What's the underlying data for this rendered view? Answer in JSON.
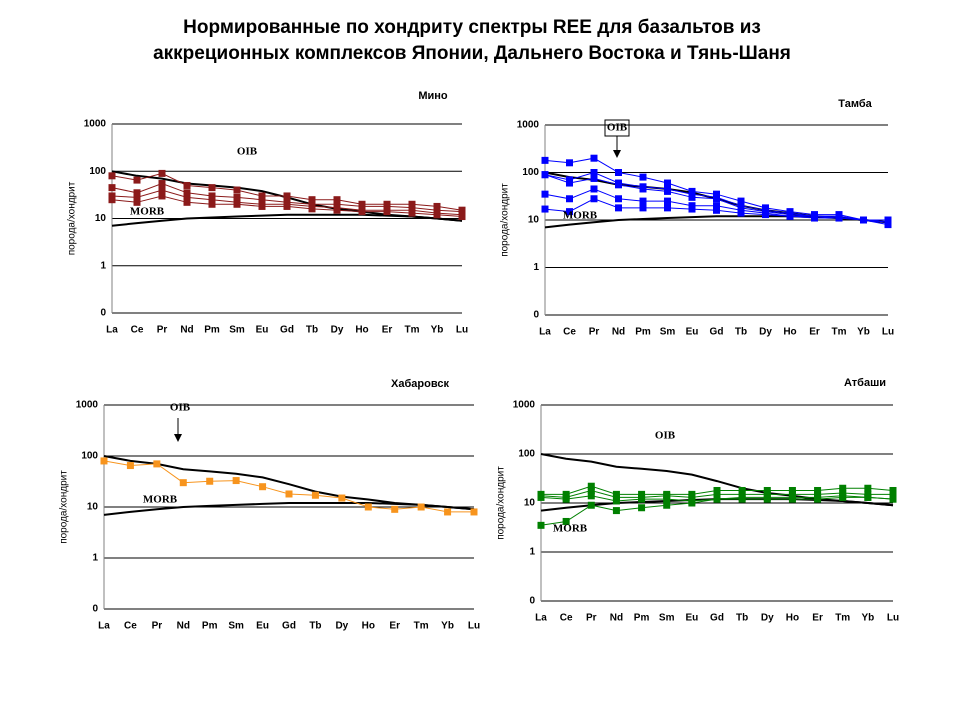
{
  "title": [
    "Нормированные по хондриту спектры REE для базальтов из",
    "аккреционных комплексов Японии, Дальнего Востока и Тянь-Шаня"
  ],
  "chart_data": [
    {
      "type": "line",
      "subtitle": "Мино",
      "y_label": "порода/хондрит",
      "log_scale": true,
      "grid": true,
      "categories": [
        "La",
        "Ce",
        "Pr",
        "Nd",
        "Pm",
        "Sm",
        "Eu",
        "Gd",
        "Tb",
        "Dy",
        "Ho",
        "Er",
        "Tm",
        "Yb",
        "Lu"
      ],
      "ylim": [
        0.1,
        1000
      ],
      "yticks": [
        {
          "value": 0.1,
          "label": "0"
        },
        1,
        10,
        100,
        1000
      ],
      "annotations": [
        "OIB",
        "MORB"
      ],
      "series": [
        {
          "color": "#000000",
          "markers": false,
          "values": [
            100,
            80,
            70,
            55,
            50,
            45,
            38,
            28,
            20,
            16,
            14,
            12,
            11,
            10,
            9
          ]
        },
        {
          "color": "#000000",
          "markers": false,
          "values": [
            7,
            8,
            9,
            10,
            10.5,
            11,
            11.5,
            12,
            12,
            12,
            12,
            11.5,
            11,
            10,
            9
          ]
        },
        {
          "color": "#8b1a1a",
          "markers": true,
          "values": [
            80,
            65,
            90,
            50,
            45,
            40,
            30,
            30,
            25,
            25,
            20,
            20,
            20,
            18,
            15
          ]
        },
        {
          "color": "#8b1a1a",
          "markers": true,
          "values": [
            45,
            35,
            55,
            35,
            30,
            28,
            25,
            22,
            20,
            20,
            18,
            18,
            17,
            15,
            14
          ]
        },
        {
          "color": "#8b1a1a",
          "markers": true,
          "values": [
            30,
            28,
            40,
            28,
            25,
            22,
            20,
            20,
            18,
            17,
            15,
            15,
            15,
            13,
            12
          ]
        },
        {
          "color": "#8b1a1a",
          "markers": true,
          "values": [
            25,
            22,
            30,
            22,
            20,
            20,
            18,
            18,
            16,
            15,
            14,
            14,
            13,
            12,
            11
          ]
        }
      ]
    },
    {
      "type": "line",
      "subtitle": "Тамба",
      "y_label": "порода/хондрит",
      "log_scale": true,
      "grid": true,
      "categories": [
        "La",
        "Ce",
        "Pr",
        "Nd",
        "Pm",
        "Sm",
        "Eu",
        "Gd",
        "Tb",
        "Dy",
        "Ho",
        "Er",
        "Tm",
        "Yb",
        "Lu"
      ],
      "ylim": [
        0.1,
        1000
      ],
      "yticks": [
        {
          "value": 0.1,
          "label": "0"
        },
        1,
        10,
        100,
        1000
      ],
      "annotations": [
        "OIB",
        "MORB"
      ],
      "series": [
        {
          "color": "#000000",
          "markers": false,
          "values": [
            100,
            80,
            70,
            55,
            50,
            45,
            38,
            28,
            20,
            16,
            14,
            12,
            11,
            10,
            9
          ]
        },
        {
          "color": "#000000",
          "markers": false,
          "values": [
            7,
            8,
            9,
            10,
            10.5,
            11,
            11.5,
            12,
            12,
            12,
            12,
            11.5,
            11,
            10,
            9
          ]
        },
        {
          "color": "#0000ff",
          "markers": true,
          "values": [
            180,
            160,
            200,
            100,
            80,
            60,
            40,
            35,
            25,
            18,
            15,
            13,
            13,
            10,
            10
          ]
        },
        {
          "color": "#0000ff",
          "markers": true,
          "values": [
            90,
            70,
            100,
            60,
            50,
            45,
            35,
            30,
            20,
            16,
            14,
            12,
            12,
            10,
            9
          ]
        },
        {
          "color": "#0000ff",
          "markers": true,
          "values": [
            90,
            60,
            75,
            55,
            45,
            40,
            30,
            28,
            18,
            15,
            13,
            12,
            12,
            10,
            9
          ]
        },
        {
          "color": "#0000ff",
          "markers": true,
          "values": [
            35,
            28,
            45,
            28,
            25,
            25,
            20,
            20,
            16,
            14,
            12,
            12,
            11,
            10,
            9
          ]
        },
        {
          "color": "#0000ff",
          "markers": true,
          "values": [
            17,
            15,
            28,
            18,
            18,
            18,
            17,
            16,
            14,
            13,
            12,
            11,
            11,
            10,
            8
          ]
        }
      ]
    },
    {
      "type": "line",
      "subtitle": "Хабаровск",
      "y_label": "порода/хондрит",
      "log_scale": true,
      "grid": true,
      "categories": [
        "La",
        "Ce",
        "Pr",
        "Nd",
        "Pm",
        "Sm",
        "Eu",
        "Gd",
        "Tb",
        "Dy",
        "Ho",
        "Er",
        "Tm",
        "Yb",
        "Lu"
      ],
      "ylim": [
        0.1,
        1000
      ],
      "yticks": [
        {
          "value": 0.1,
          "label": "0"
        },
        1,
        10,
        100,
        1000
      ],
      "annotations": [
        "OIB",
        "MORB"
      ],
      "series": [
        {
          "color": "#000000",
          "markers": false,
          "values": [
            100,
            80,
            70,
            55,
            50,
            45,
            38,
            28,
            20,
            16,
            14,
            12,
            11,
            10,
            9
          ]
        },
        {
          "color": "#000000",
          "markers": false,
          "values": [
            7,
            8,
            9,
            10,
            10.5,
            11,
            11.5,
            12,
            12,
            12,
            12,
            11.5,
            11,
            10,
            9
          ]
        },
        {
          "color": "#f7941d",
          "markers": true,
          "values": [
            80,
            65,
            70,
            30,
            32,
            33,
            25,
            18,
            17,
            15,
            10,
            9,
            10,
            8,
            8
          ]
        }
      ]
    },
    {
      "type": "line",
      "subtitle": "Атбаши",
      "y_label": "порода/хондрит",
      "log_scale": true,
      "grid": true,
      "categories": [
        "La",
        "Ce",
        "Pr",
        "Nd",
        "Pm",
        "Sm",
        "Eu",
        "Gd",
        "Tb",
        "Dy",
        "Ho",
        "Er",
        "Tm",
        "Yb",
        "Lu"
      ],
      "ylim": [
        0.1,
        1000
      ],
      "yticks": [
        {
          "value": 0.1,
          "label": "0"
        },
        1,
        10,
        100,
        1000
      ],
      "annotations": [
        "OIB",
        "MORB"
      ],
      "series": [
        {
          "color": "#000000",
          "markers": false,
          "values": [
            100,
            80,
            70,
            55,
            50,
            45,
            38,
            28,
            20,
            16,
            14,
            12,
            11,
            10,
            9
          ]
        },
        {
          "color": "#000000",
          "markers": false,
          "values": [
            7,
            8,
            9,
            10,
            10.5,
            11,
            11.5,
            12,
            12,
            12,
            12,
            11.5,
            11,
            10,
            9
          ]
        },
        {
          "color": "#008000",
          "markers": true,
          "values": [
            15,
            15,
            22,
            15,
            15,
            15,
            15,
            18,
            18,
            18,
            18,
            18,
            20,
            20,
            18
          ]
        },
        {
          "color": "#008000",
          "markers": true,
          "values": [
            14,
            13,
            18,
            13,
            13,
            14,
            13,
            15,
            15,
            15,
            15,
            15,
            16,
            15,
            15
          ]
        },
        {
          "color": "#008000",
          "markers": true,
          "values": [
            13,
            12,
            14,
            11,
            12,
            12,
            11,
            12,
            13,
            13,
            13,
            13,
            14,
            13,
            12
          ]
        },
        {
          "color": "#008000",
          "markers": true,
          "values": [
            3.5,
            4.2,
            9,
            7,
            8,
            9,
            10,
            12,
            12,
            12,
            12,
            12,
            13,
            13,
            12
          ]
        }
      ]
    }
  ]
}
